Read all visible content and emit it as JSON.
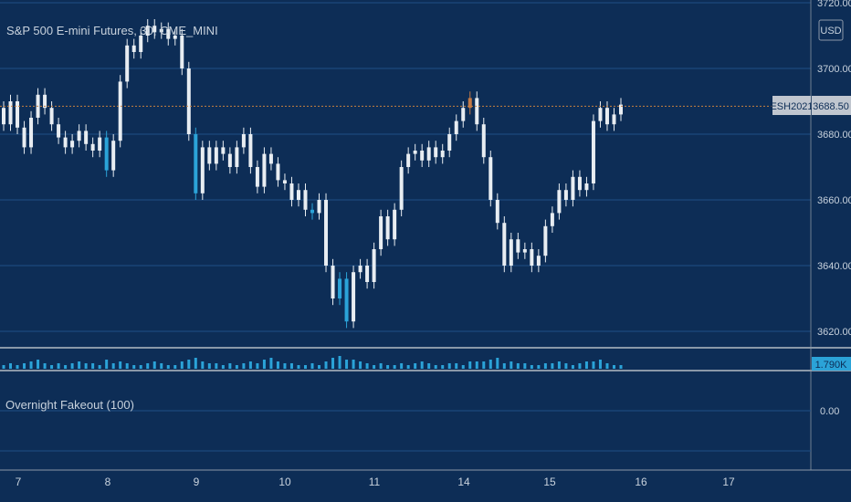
{
  "colors": {
    "background": "#0d2d56",
    "grid": "#1e4f86",
    "candle": "#e8edf2",
    "highlight_down": "#2ba3d8",
    "highlight_up": "#c47a47",
    "last_price_line": "#c7813f",
    "axis_text": "#c8d2dd",
    "separator": "#8a98a8",
    "volume": "#2ba3d8"
  },
  "header": {
    "symbol_title": "S&P 500 E-mini Futures, 30, CME_MINI",
    "currency": "USD"
  },
  "price_badge": {
    "symbol": "ESH2021",
    "value": "3688.50"
  },
  "volume_badge": {
    "value": "1.790K"
  },
  "indicator": {
    "name": "Overnight Fakeout (100)",
    "tick": "0.00"
  },
  "chart_data": {
    "type": "candlestick",
    "title": "S&P 500 E-mini Futures, 30, CME_MINI",
    "ylabel": "USD",
    "ylim": [
      3613,
      3722
    ],
    "y_ticks": [
      "3620.00",
      "3640.00",
      "3660.00",
      "3680.00",
      "3700.00",
      "3720.00"
    ],
    "x_ticks": [
      "7",
      "8",
      "9",
      "10",
      "11",
      "14",
      "15",
      "16",
      "17"
    ],
    "last_price": 3688.5,
    "series": [
      {
        "name": "price",
        "points": [
          [
            3688,
            3683
          ],
          [
            3683,
            3690
          ],
          [
            3690,
            3682
          ],
          [
            3682,
            3676
          ],
          [
            3676,
            3685
          ],
          [
            3685,
            3692
          ],
          [
            3692,
            3688
          ],
          [
            3688,
            3683
          ],
          [
            3683,
            3679
          ],
          [
            3679,
            3676
          ],
          [
            3676,
            3678
          ],
          [
            3678,
            3681
          ],
          [
            3681,
            3677
          ],
          [
            3677,
            3675
          ],
          [
            3675,
            3679
          ],
          [
            3679,
            3669
          ],
          [
            3669,
            3678
          ],
          [
            3678,
            3696
          ],
          [
            3696,
            3707
          ],
          [
            3707,
            3705
          ],
          [
            3705,
            3710
          ],
          [
            3710,
            3713
          ],
          [
            3713,
            3711
          ],
          [
            3711,
            3712
          ],
          [
            3712,
            3709
          ],
          [
            3709,
            3710
          ],
          [
            3710,
            3700
          ],
          [
            3700,
            3680
          ],
          [
            3680,
            3662
          ],
          [
            3662,
            3676
          ],
          [
            3676,
            3671
          ],
          [
            3671,
            3676
          ],
          [
            3676,
            3674
          ],
          [
            3674,
            3670
          ],
          [
            3670,
            3676
          ],
          [
            3676,
            3680
          ],
          [
            3680,
            3670
          ],
          [
            3670,
            3664
          ],
          [
            3664,
            3674
          ],
          [
            3674,
            3671
          ],
          [
            3671,
            3666
          ],
          [
            3666,
            3665
          ],
          [
            3665,
            3660
          ],
          [
            3660,
            3663
          ],
          [
            3663,
            3657
          ],
          [
            3657,
            3656
          ],
          [
            3656,
            3660
          ],
          [
            3660,
            3640
          ],
          [
            3640,
            3630
          ],
          [
            3630,
            3636
          ],
          [
            3636,
            3623
          ],
          [
            3623,
            3638
          ],
          [
            3638,
            3640
          ],
          [
            3640,
            3635
          ],
          [
            3635,
            3645
          ],
          [
            3645,
            3655
          ],
          [
            3655,
            3648
          ],
          [
            3648,
            3657
          ],
          [
            3657,
            3670
          ],
          [
            3670,
            3674
          ],
          [
            3674,
            3675
          ],
          [
            3675,
            3672
          ],
          [
            3672,
            3676
          ],
          [
            3676,
            3673
          ],
          [
            3673,
            3675
          ],
          [
            3675,
            3680
          ],
          [
            3680,
            3684
          ],
          [
            3684,
            3688
          ],
          [
            3688,
            3691
          ],
          [
            3691,
            3683
          ],
          [
            3683,
            3673
          ],
          [
            3673,
            3660
          ],
          [
            3660,
            3653
          ],
          [
            3653,
            3640
          ],
          [
            3640,
            3648
          ],
          [
            3648,
            3644
          ],
          [
            3644,
            3645
          ],
          [
            3645,
            3640
          ],
          [
            3640,
            3643
          ],
          [
            3643,
            3652
          ],
          [
            3652,
            3656
          ],
          [
            3656,
            3663
          ],
          [
            3663,
            3660
          ],
          [
            3660,
            3667
          ],
          [
            3667,
            3663
          ],
          [
            3663,
            3665
          ],
          [
            3665,
            3684
          ],
          [
            3684,
            3688
          ],
          [
            3688,
            3683
          ],
          [
            3683,
            3686
          ],
          [
            3686,
            3689
          ]
        ]
      }
    ],
    "volume": [
      2,
      3,
      2,
      3,
      4,
      5,
      3,
      2,
      3,
      2,
      3,
      4,
      3,
      3,
      2,
      5,
      3,
      4,
      3,
      2,
      2,
      3,
      4,
      3,
      2,
      2,
      4,
      5,
      6,
      4,
      3,
      3,
      2,
      3,
      2,
      3,
      4,
      3,
      5,
      6,
      4,
      3,
      3,
      2,
      2,
      3,
      2,
      4,
      6,
      7,
      5,
      5,
      4,
      3,
      2,
      3,
      2,
      2,
      3,
      2,
      3,
      4,
      3,
      2,
      2,
      3,
      3,
      2,
      4,
      4,
      4,
      5,
      6,
      3,
      4,
      3,
      3,
      2,
      2,
      3,
      3,
      4,
      3,
      2,
      3,
      4,
      4,
      5,
      3,
      2,
      2
    ]
  }
}
